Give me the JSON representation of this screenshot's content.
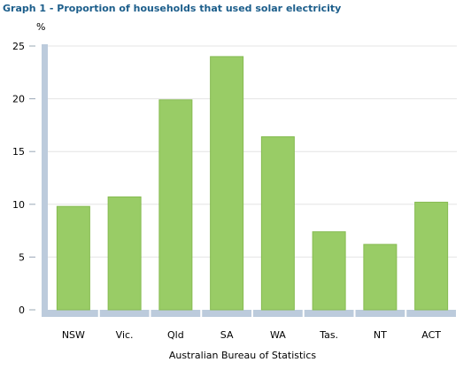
{
  "chart_data": {
    "type": "bar",
    "title": "Graph 1 - Proportion of households that used solar electricity",
    "ylabel": "%",
    "categories": [
      "NSW",
      "Vic.",
      "Qld",
      "SA",
      "WA",
      "Tas.",
      "NT",
      "ACT"
    ],
    "series": [
      {
        "values": [
          9.8,
          10.7,
          19.9,
          24.0,
          16.4,
          7.4,
          6.2,
          10.2
        ]
      }
    ],
    "ylim": [
      0,
      25
    ],
    "yticks": [
      "0",
      "5",
      "10",
      "15",
      "20",
      "25"
    ],
    "grid": true,
    "legend": "none",
    "source": "Australian Bureau of Statistics",
    "colors": {
      "bar": "#99cc66",
      "bar_edge": "#86bb52",
      "axis": "#bccbdc",
      "gridline": "#e4e4e4",
      "title": "#1c5e8b"
    }
  }
}
